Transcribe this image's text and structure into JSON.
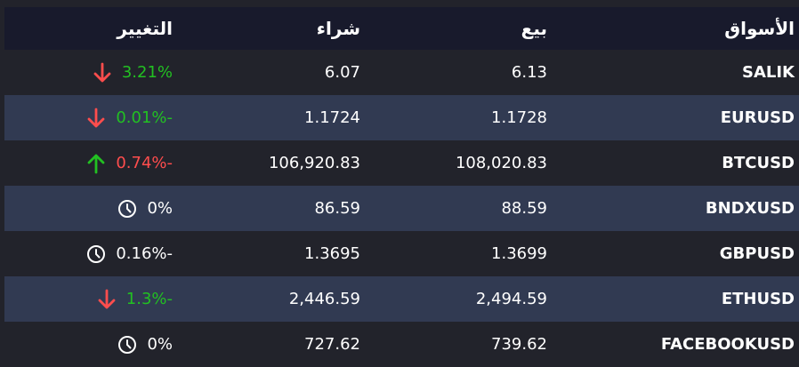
{
  "colors": {
    "positive": "#22c022",
    "negative": "#ff4d4d",
    "neutral": "#ffffff",
    "header_bg": "#181a2c",
    "row_alt_bg": "#313a52",
    "bg": "#22232b"
  },
  "headers": {
    "market": "الأسواق",
    "sell": "بيع",
    "buy": "شراء",
    "change": "التغيير"
  },
  "rows": [
    {
      "market": "SALIK",
      "sell": "6.13",
      "buy": "6.07",
      "change": "3.21%",
      "change_color": "positive",
      "icon": "arrow-down-icon"
    },
    {
      "market": "EURUSD",
      "sell": "1.1728",
      "buy": "1.1724",
      "change": "0.01%-",
      "change_color": "positive",
      "icon": "arrow-down-icon"
    },
    {
      "market": "BTCUSD",
      "sell": "108,020.83",
      "buy": "106,920.83",
      "change": "0.74%-",
      "change_color": "negative",
      "icon": "arrow-up-icon"
    },
    {
      "market": "BNDXUSD",
      "sell": "88.59",
      "buy": "86.59",
      "change": "0%",
      "change_color": "neutral",
      "icon": "clock-icon"
    },
    {
      "market": "GBPUSD",
      "sell": "1.3699",
      "buy": "1.3695",
      "change": "0.16%-",
      "change_color": "neutral",
      "icon": "clock-icon"
    },
    {
      "market": "ETHUSD",
      "sell": "2,494.59",
      "buy": "2,446.59",
      "change": "1.3%-",
      "change_color": "positive",
      "icon": "arrow-down-icon"
    },
    {
      "market": "FACEBOOKUSD",
      "sell": "739.62",
      "buy": "727.62",
      "change": "0%",
      "change_color": "neutral",
      "icon": "clock-icon"
    }
  ]
}
